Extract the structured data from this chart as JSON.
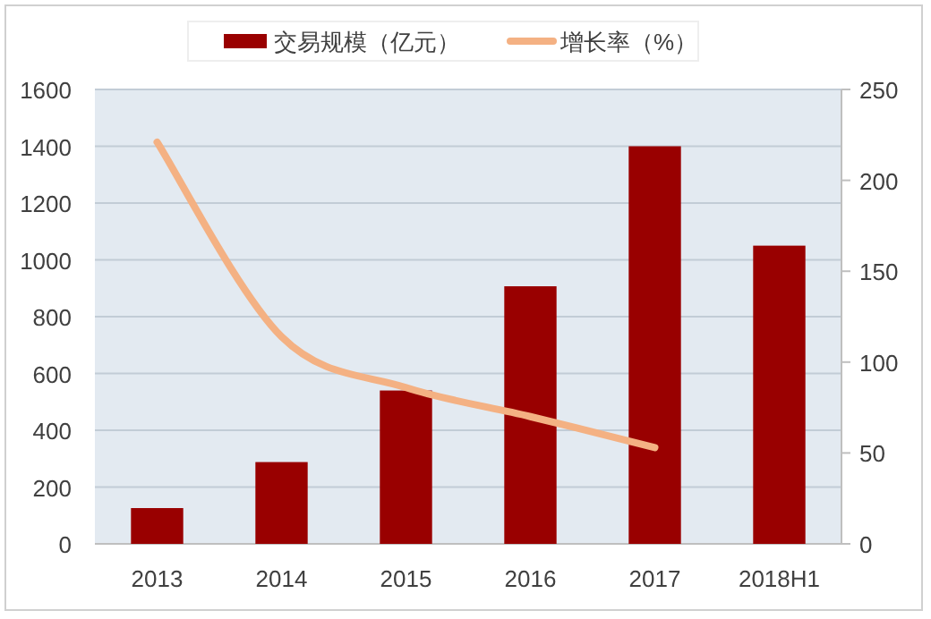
{
  "chart_data": {
    "type": "bar",
    "categories": [
      "2013",
      "2014",
      "2015",
      "2016",
      "2017",
      "2018H1"
    ],
    "series": [
      {
        "name": "交易规模（亿元）",
        "color": "#990000",
        "values": [
          126,
          288,
          540,
          907,
          1400,
          1050
        ]
      },
      {
        "name": "增长率（%）",
        "type": "line",
        "axis": "y2",
        "color": "#f4b183",
        "values": [
          221,
          114,
          86,
          70,
          53,
          null
        ]
      }
    ],
    "ylim": [
      0,
      1600
    ],
    "yticks": [
      0,
      200,
      400,
      600,
      800,
      1000,
      1200,
      1400,
      1600
    ],
    "y2lim": [
      0,
      250
    ],
    "y2ticks": [
      0,
      50,
      100,
      150,
      200,
      250
    ],
    "grid": "y",
    "legend": "top",
    "marker": "none",
    "line_style": "solid"
  }
}
